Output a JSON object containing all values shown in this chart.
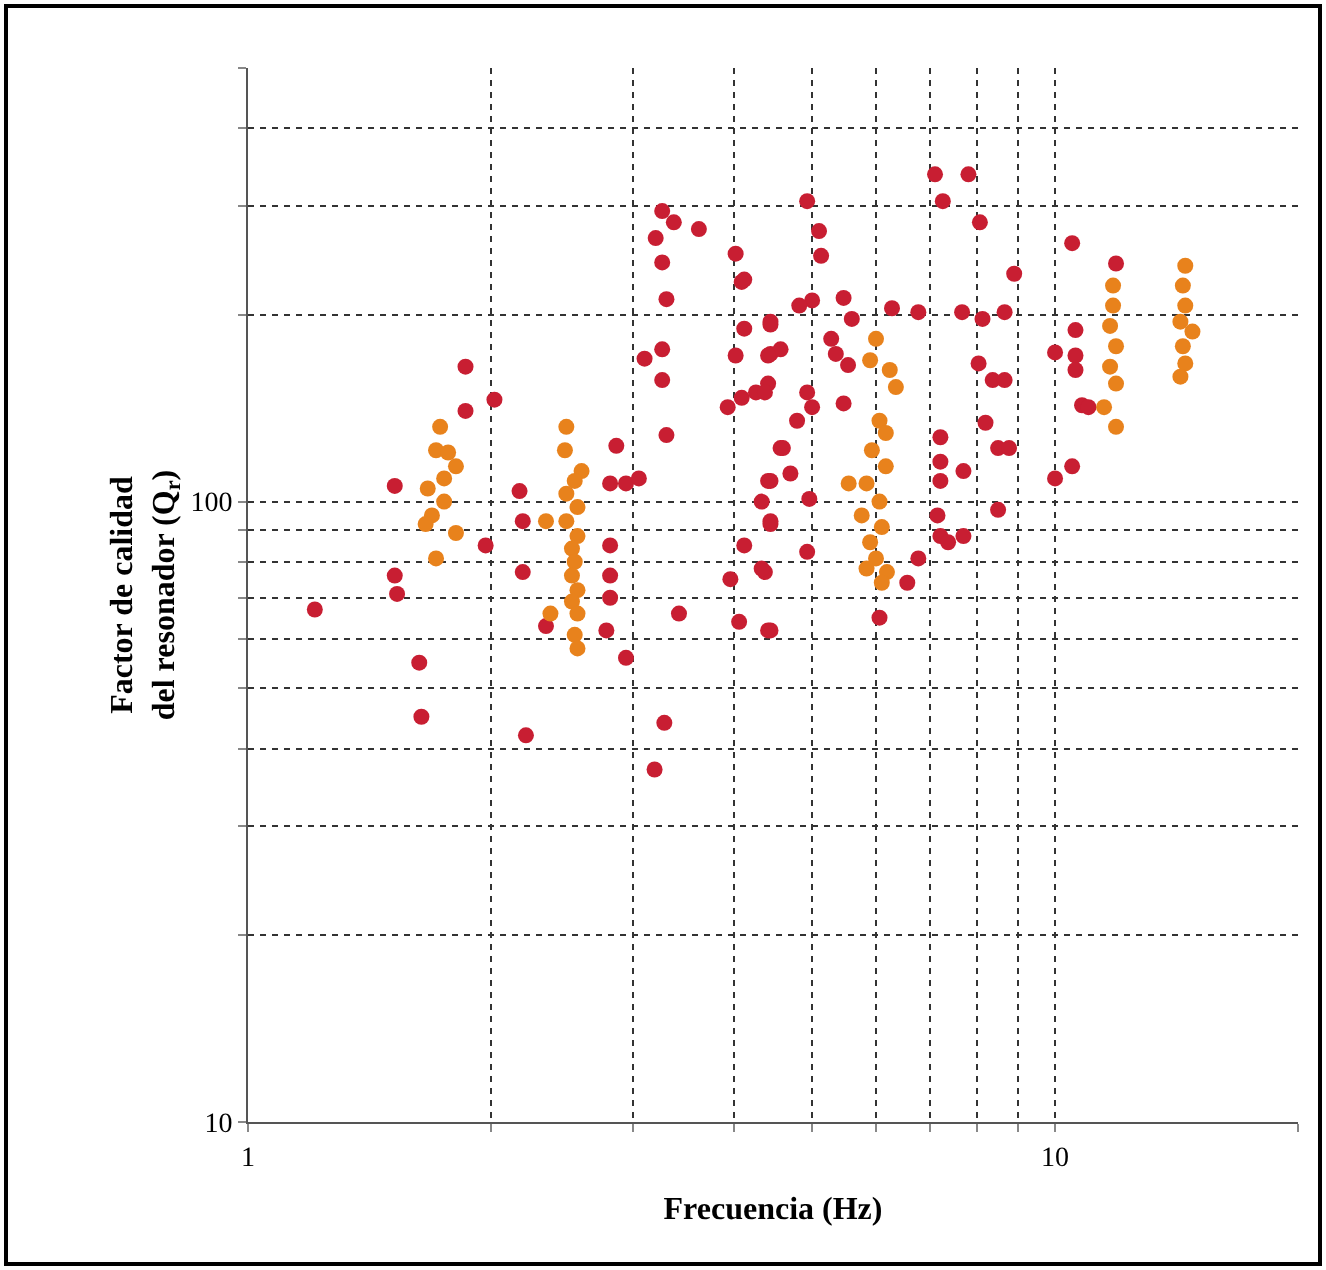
{
  "chart_data": {
    "type": "scatter",
    "xlabel": "Frecuencia (Hz)",
    "ylabel": "Factor de calidad\ndel resonador (Q$_{r}$)",
    "log": "xy",
    "grid": true,
    "marker": "circle",
    "xlim": [
      1,
      20
    ],
    "ylim": [
      10,
      500
    ],
    "xticks": [
      1,
      {
        "value": 2,
        "label": null
      },
      {
        "value": 3,
        "label": null
      },
      {
        "value": 4,
        "label": null
      },
      {
        "value": 5,
        "label": null
      },
      {
        "value": 6,
        "label": null
      },
      {
        "value": 7,
        "label": null
      },
      {
        "value": 8,
        "label": null
      },
      {
        "value": 9,
        "label": null
      },
      10,
      {
        "value": 20,
        "label": null
      }
    ],
    "yticks": [
      10,
      {
        "value": 20,
        "label": null
      },
      {
        "value": 30,
        "label": null
      },
      {
        "value": 40,
        "label": null
      },
      {
        "value": 50,
        "label": null
      },
      {
        "value": 60,
        "label": null
      },
      {
        "value": 70,
        "label": null
      },
      {
        "value": 80,
        "label": null
      },
      {
        "value": 90,
        "label": null
      },
      100,
      {
        "value": 200,
        "label": null
      },
      {
        "value": 300,
        "label": null
      },
      {
        "value": 400,
        "label": null
      },
      {
        "value": 500,
        "label": null
      }
    ],
    "series": [
      {
        "color": "#c81e32",
        "x": [
          1.21,
          1.52,
          1.52,
          1.53,
          1.63,
          1.86,
          1.86,
          2.02,
          1.97,
          2.17,
          2.19,
          2.19,
          2.34,
          2.86,
          2.81,
          2.94,
          3.05,
          2.81,
          2.81,
          2.81,
          2.78,
          2.94,
          3.26,
          3.37,
          3.62,
          3.2,
          3.26,
          3.3,
          3.26,
          3.1,
          3.26,
          3.3,
          3.42,
          4.02,
          4.09,
          4.12,
          4.02,
          3.93,
          4.09,
          4.26,
          4.44,
          4.44,
          4.41,
          4.57,
          4.41,
          4.33,
          4.44,
          4.12,
          4.37,
          3.96,
          4.06,
          4.41,
          1.64,
          2.21,
          3.28,
          3.19,
          4.93,
          5.1,
          5.13,
          5.0,
          4.82,
          5.47,
          5.6,
          6.28,
          6.77,
          4.12,
          4.44,
          4.57,
          4.41,
          4.37,
          4.93,
          5.0,
          4.79,
          5.28,
          5.35,
          5.54,
          5.47,
          4.6,
          4.44,
          4.7,
          4.96,
          4.44,
          4.93,
          4.33,
          4.44,
          7.1,
          7.81,
          7.26,
          8.07,
          8.9,
          7.67,
          8.13,
          8.66,
          8.04,
          8.37,
          8.66,
          8.2,
          8.5,
          8.77,
          7.21,
          7.21,
          7.21,
          7.7,
          8.5,
          7.15,
          7.21,
          7.37,
          7.7,
          6.77,
          6.56,
          6.06,
          10.5,
          11.9,
          10.6,
          10.0,
          10.6,
          10.6,
          10.8,
          11.0,
          10.5,
          10.0
        ],
        "values": [
          67,
          106,
          76,
          71,
          55,
          165,
          140,
          146,
          85,
          104,
          93,
          77,
          63,
          123,
          107,
          107,
          109,
          85,
          76,
          70,
          62,
          56,
          294,
          282,
          275,
          266,
          243,
          212,
          176,
          170,
          157,
          128,
          66,
          251,
          226,
          190,
          172,
          142,
          147,
          150,
          193,
          173,
          155,
          122,
          108,
          100,
          92,
          85,
          77,
          75,
          64,
          62,
          45,
          42,
          44,
          37,
          305,
          273,
          249,
          211,
          207,
          213,
          197,
          205,
          202,
          228,
          195,
          176,
          172,
          150,
          150,
          142,
          135,
          183,
          173,
          166,
          144,
          122,
          108,
          111,
          101,
          93,
          83,
          78,
          62,
          337,
          337,
          305,
          282,
          233,
          202,
          197,
          202,
          167,
          157,
          157,
          134,
          122,
          122,
          127,
          116,
          108,
          112,
          97,
          95,
          88,
          86,
          88,
          81,
          74,
          65,
          261,
          242,
          189,
          174,
          172,
          163,
          143,
          142,
          114,
          109
        ]
      },
      {
        "color": "#e8821c",
        "x": [
          1.73,
          1.71,
          1.77,
          1.81,
          1.75,
          1.67,
          1.75,
          1.69,
          1.66,
          1.81,
          1.71,
          2.48,
          2.47,
          2.59,
          2.54,
          2.48,
          2.56,
          2.48,
          2.56,
          2.52,
          2.54,
          2.52,
          2.56,
          2.52,
          2.37,
          2.56,
          2.54,
          2.56,
          2.34,
          6.0,
          5.9,
          6.24,
          6.35,
          6.06,
          6.17,
          5.93,
          6.17,
          5.84,
          6.06,
          5.76,
          6.1,
          5.9,
          6.0,
          5.84,
          6.19,
          6.1,
          5.55,
          11.8,
          11.8,
          11.7,
          11.9,
          11.7,
          11.9,
          11.5,
          11.9,
          14.5,
          14.4,
          14.5,
          14.3,
          14.8,
          14.4,
          14.5,
          14.3
        ],
        "values": [
          132,
          121,
          120,
          114,
          109,
          105,
          100,
          95,
          92,
          89,
          81,
          132,
          121,
          112,
          108,
          103,
          98,
          93,
          88,
          84,
          80,
          76,
          72,
          69,
          66,
          66,
          61,
          58,
          93,
          183,
          169,
          163,
          153,
          135,
          129,
          121,
          114,
          107,
          100,
          95,
          91,
          86,
          81,
          78,
          77,
          74,
          107,
          223,
          207,
          192,
          178,
          165,
          155,
          142,
          132,
          240,
          223,
          207,
          195,
          188,
          178,
          167,
          159
        ]
      }
    ]
  }
}
